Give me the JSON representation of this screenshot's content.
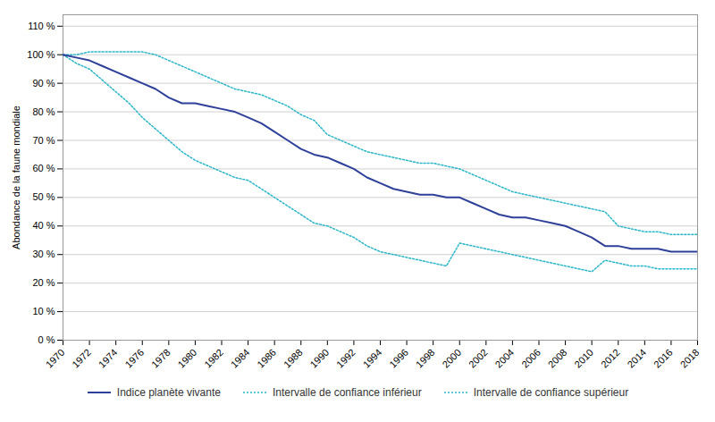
{
  "chart_data": {
    "type": "line",
    "ylabel": "Abondance de la faune mondiale",
    "x": [
      1970,
      1971,
      1972,
      1973,
      1974,
      1975,
      1976,
      1977,
      1978,
      1979,
      1980,
      1981,
      1982,
      1983,
      1984,
      1985,
      1986,
      1987,
      1988,
      1989,
      1990,
      1991,
      1992,
      1993,
      1994,
      1995,
      1996,
      1997,
      1998,
      1999,
      2000,
      2001,
      2002,
      2003,
      2004,
      2005,
      2006,
      2007,
      2008,
      2009,
      2010,
      2011,
      2012,
      2013,
      2014,
      2015,
      2016,
      2017,
      2018
    ],
    "series": [
      {
        "name": "Indice planète vivante",
        "color": "#2E4099",
        "line_style": "solid",
        "values": [
          100,
          99,
          98,
          96,
          94,
          92,
          90,
          88,
          85,
          83,
          83,
          82,
          81,
          80,
          78,
          76,
          73,
          70,
          67,
          65,
          64,
          62,
          60,
          57,
          55,
          53,
          52,
          51,
          51,
          50,
          50,
          48,
          46,
          44,
          43,
          43,
          42,
          41,
          40,
          38,
          36,
          33,
          33,
          32,
          32,
          32,
          31,
          31,
          31
        ]
      },
      {
        "name": "Intervalle de confiance inférieur",
        "color": "#29B6C8",
        "line_style": "dotted",
        "values": [
          100,
          97,
          95,
          91,
          87,
          83,
          78,
          74,
          70,
          66,
          63,
          61,
          59,
          57,
          56,
          53,
          50,
          47,
          44,
          41,
          40,
          38,
          36,
          33,
          31,
          30,
          29,
          28,
          27,
          26,
          34,
          33,
          32,
          31,
          30,
          29,
          28,
          27,
          26,
          25,
          24,
          28,
          27,
          26,
          26,
          25,
          25,
          25,
          25
        ]
      },
      {
        "name": "Intervalle de confiance supérieur",
        "color": "#29B6C8",
        "line_style": "dotted",
        "values": [
          100,
          100,
          101,
          101,
          101,
          101,
          101,
          100,
          98,
          96,
          94,
          92,
          90,
          88,
          87,
          86,
          84,
          82,
          79,
          77,
          72,
          70,
          68,
          66,
          65,
          64,
          63,
          62,
          62,
          61,
          60,
          58,
          56,
          54,
          52,
          51,
          50,
          49,
          48,
          47,
          46,
          45,
          40,
          39,
          38,
          38,
          37,
          37,
          37
        ]
      }
    ],
    "xlim": [
      1970,
      2018
    ],
    "xticks": [
      1970,
      1972,
      1974,
      1976,
      1978,
      1980,
      1982,
      1984,
      1986,
      1988,
      1990,
      1992,
      1994,
      1996,
      1998,
      2000,
      2002,
      2004,
      2006,
      2008,
      2010,
      2012,
      2014,
      2016,
      2018
    ],
    "ylim": [
      0,
      114
    ],
    "yticks": [
      {
        "value": 0,
        "label": "0 %"
      },
      {
        "value": 10,
        "label": "10 %"
      },
      {
        "value": 20,
        "label": "20 %"
      },
      {
        "value": 30,
        "label": "30 %"
      },
      {
        "value": 40,
        "label": "40 %"
      },
      {
        "value": 50,
        "label": "50 %"
      },
      {
        "value": 60,
        "label": "60 %"
      },
      {
        "value": 70,
        "label": "70 %"
      },
      {
        "value": 80,
        "label": "80 %"
      },
      {
        "value": 90,
        "label": "90 %"
      },
      {
        "value": 100,
        "label": "100 %"
      },
      {
        "value": 110,
        "label": "110 %"
      }
    ],
    "grid": true,
    "legend": "bottom"
  }
}
